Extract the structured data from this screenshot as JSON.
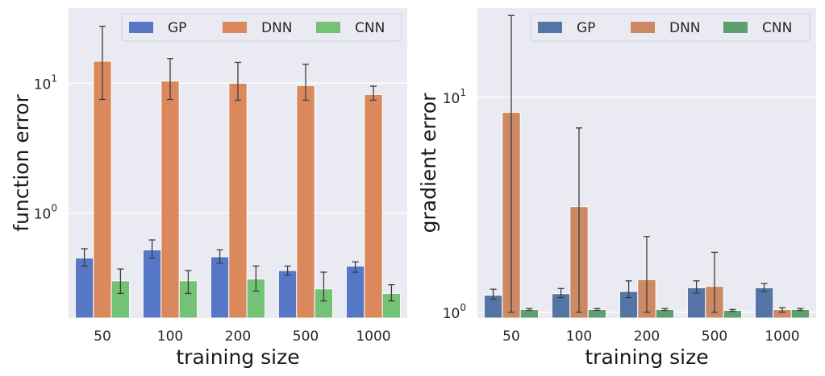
{
  "chart_data": [
    {
      "type": "bar",
      "yscale": "log",
      "xlabel": "training size",
      "ylabel": "function error",
      "categories": [
        "50",
        "100",
        "200",
        "500",
        "1000"
      ],
      "ylim": [
        0.155,
        38
      ],
      "yticks": [
        {
          "value": 1,
          "base": "10",
          "exp": "0"
        },
        {
          "value": 10,
          "base": "10",
          "exp": "1"
        }
      ],
      "legend_position": "top",
      "series": [
        {
          "name": "GP",
          "color": "#5677c6",
          "values": [
            0.45,
            0.52,
            0.46,
            0.36,
            0.39
          ],
          "err_low": [
            0.39,
            0.45,
            0.41,
            0.33,
            0.35
          ],
          "err_high": [
            0.53,
            0.62,
            0.52,
            0.39,
            0.42
          ]
        },
        {
          "name": "DNN",
          "color": "#dc885d",
          "values": [
            14.8,
            10.4,
            10.0,
            9.6,
            8.2
          ],
          "err_low": [
            7.5,
            7.5,
            7.4,
            7.4,
            7.4
          ],
          "err_high": [
            27.5,
            15.5,
            14.5,
            14.0,
            9.5
          ]
        },
        {
          "name": "CNN",
          "color": "#74c276",
          "values": [
            0.3,
            0.3,
            0.31,
            0.26,
            0.24
          ],
          "err_low": [
            0.24,
            0.24,
            0.25,
            0.21,
            0.21
          ],
          "err_high": [
            0.37,
            0.36,
            0.39,
            0.35,
            0.28
          ]
        }
      ]
    },
    {
      "type": "bar",
      "yscale": "log",
      "xlabel": "training size",
      "ylabel": "gradient error",
      "categories": [
        "50",
        "100",
        "200",
        "500",
        "1000"
      ],
      "ylim": [
        0.94,
        26
      ],
      "yticks": [
        {
          "value": 1,
          "base": "10",
          "exp": "0"
        },
        {
          "value": 10,
          "base": "10",
          "exp": "1"
        }
      ],
      "legend_position": "top",
      "series": [
        {
          "name": "GP",
          "color": "#5574a6",
          "values": [
            1.2,
            1.22,
            1.25,
            1.3,
            1.3
          ],
          "err_low": [
            1.15,
            1.17,
            1.17,
            1.23,
            1.25
          ],
          "err_high": [
            1.28,
            1.29,
            1.4,
            1.4,
            1.36
          ]
        },
        {
          "name": "DNN",
          "color": "#cc8963",
          "values": [
            8.5,
            3.1,
            1.42,
            1.32,
            1.03
          ],
          "err_low": [
            1.0,
            1.0,
            1.0,
            1.0,
            1.0
          ],
          "err_high": [
            24.0,
            7.2,
            2.25,
            1.9,
            1.05
          ]
        },
        {
          "name": "CNN",
          "color": "#5f9e6e",
          "values": [
            1.03,
            1.03,
            1.03,
            1.02,
            1.03
          ],
          "err_low": [
            1.02,
            1.02,
            1.02,
            1.01,
            1.02
          ],
          "err_high": [
            1.04,
            1.04,
            1.04,
            1.03,
            1.04
          ]
        }
      ]
    }
  ]
}
